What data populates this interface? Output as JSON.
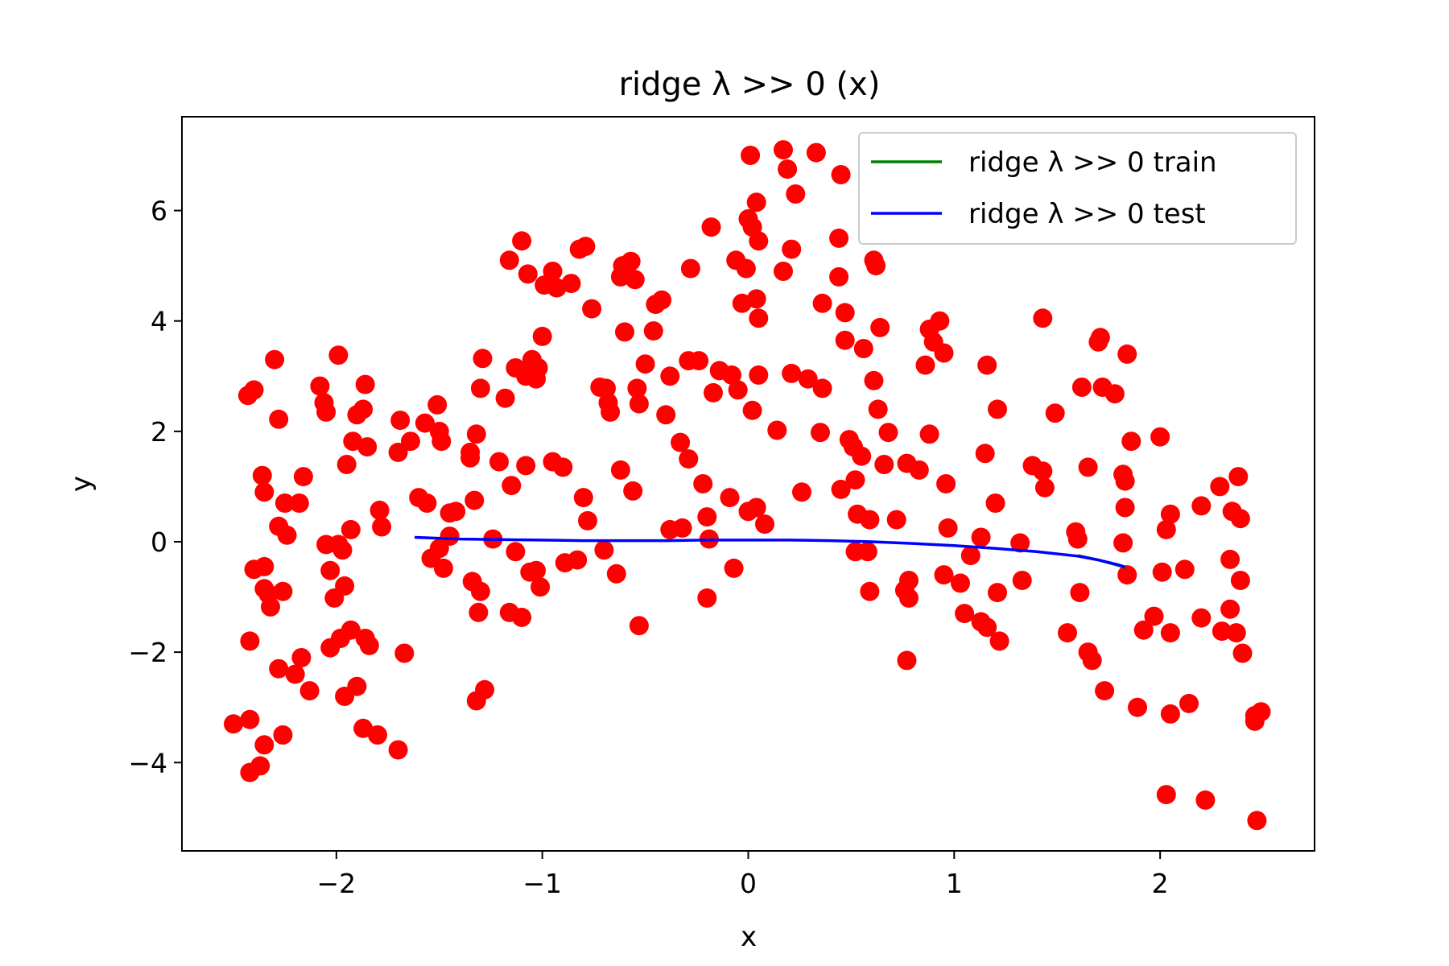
{
  "chart_data": {
    "type": "scatter",
    "title": "ridge λ >> 0  (x)",
    "xlabel": "x",
    "ylabel": "y",
    "xlim": [
      -2.75,
      2.75
    ],
    "ylim": [
      -5.6,
      7.7
    ],
    "x_ticks": [
      -2,
      -1,
      0,
      1,
      2
    ],
    "x_tick_labels": [
      "−2",
      "−1",
      "0",
      "1",
      "2"
    ],
    "y_ticks": [
      -4,
      -2,
      0,
      2,
      4,
      6
    ],
    "y_tick_labels": [
      "−4",
      "−2",
      "0",
      "2",
      "4",
      "6"
    ],
    "grid": false,
    "legend_position": "top-right",
    "colors": {
      "points": "#ff0000",
      "train": "#008000",
      "test": "#0000ff"
    },
    "series": [
      {
        "name": "ridge λ >> 0  train",
        "kind": "line",
        "color": "#008000",
        "x": [
          1.6,
          1.7,
          1.8,
          1.83
        ],
        "y": [
          -0.25,
          -0.33,
          -0.43,
          -0.47
        ]
      },
      {
        "name": "ridge λ >> 0  test",
        "kind": "line",
        "color": "#0000ff",
        "x": [
          -1.62,
          -1.4,
          -1.2,
          -1.0,
          -0.8,
          -0.6,
          -0.4,
          -0.2,
          0.0,
          0.2,
          0.4,
          0.6,
          0.8,
          1.0,
          1.2,
          1.4,
          1.6,
          1.7,
          1.8,
          1.83
        ],
        "y": [
          0.08,
          0.05,
          0.04,
          0.03,
          0.02,
          0.02,
          0.02,
          0.03,
          0.03,
          0.03,
          0.02,
          0.0,
          -0.03,
          -0.07,
          -0.12,
          -0.18,
          -0.26,
          -0.33,
          -0.42,
          -0.46
        ]
      },
      {
        "kind": "scatter",
        "color": "#ff0000",
        "points": [
          [
            -2.43,
            2.65
          ],
          [
            -2.4,
            2.75
          ],
          [
            -2.3,
            3.3
          ],
          [
            -2.28,
            2.22
          ],
          [
            -2.36,
            1.2
          ],
          [
            -2.35,
            0.9
          ],
          [
            -2.25,
            0.7
          ],
          [
            -2.18,
            0.7
          ],
          [
            -2.16,
            1.18
          ],
          [
            -2.28,
            0.28
          ],
          [
            -2.24,
            0.12
          ],
          [
            -2.4,
            -0.5
          ],
          [
            -2.35,
            -0.45
          ],
          [
            -2.35,
            -0.85
          ],
          [
            -2.33,
            -0.95
          ],
          [
            -2.32,
            -1.18
          ],
          [
            -2.26,
            -0.9
          ],
          [
            -2.42,
            -1.8
          ],
          [
            -2.28,
            -2.3
          ],
          [
            -2.2,
            -2.4
          ],
          [
            -2.17,
            -2.1
          ],
          [
            -2.13,
            -2.7
          ],
          [
            -2.5,
            -3.3
          ],
          [
            -2.42,
            -3.22
          ],
          [
            -2.35,
            -3.68
          ],
          [
            -2.42,
            -4.18
          ],
          [
            -2.37,
            -4.06
          ],
          [
            -2.26,
            -3.5
          ],
          [
            -2.08,
            2.82
          ],
          [
            -2.06,
            2.52
          ],
          [
            -2.05,
            2.35
          ],
          [
            -1.99,
            3.38
          ],
          [
            -1.95,
            1.4
          ],
          [
            -1.92,
            1.82
          ],
          [
            -1.9,
            2.3
          ],
          [
            -1.87,
            2.4
          ],
          [
            -1.86,
            2.85
          ],
          [
            -1.85,
            1.72
          ],
          [
            -2.05,
            -0.05
          ],
          [
            -2.03,
            -0.52
          ],
          [
            -1.99,
            -0.05
          ],
          [
            -1.97,
            -0.15
          ],
          [
            -1.96,
            -0.8
          ],
          [
            -2.01,
            -1.02
          ],
          [
            -1.93,
            0.22
          ],
          [
            -2.03,
            -1.92
          ],
          [
            -1.98,
            -1.75
          ],
          [
            -1.93,
            -1.6
          ],
          [
            -1.86,
            -1.75
          ],
          [
            -1.84,
            -1.88
          ],
          [
            -1.96,
            -2.8
          ],
          [
            -1.9,
            -2.62
          ],
          [
            -1.87,
            -3.38
          ],
          [
            -1.8,
            -3.5
          ],
          [
            -1.7,
            -3.77
          ],
          [
            -1.67,
            -2.02
          ],
          [
            -1.79,
            0.57
          ],
          [
            -1.78,
            0.27
          ],
          [
            -1.69,
            2.2
          ],
          [
            -1.7,
            1.62
          ],
          [
            -1.64,
            1.82
          ],
          [
            -1.6,
            0.8
          ],
          [
            -1.56,
            0.7
          ],
          [
            -1.57,
            2.15
          ],
          [
            -1.51,
            2.48
          ],
          [
            -1.5,
            2.0
          ],
          [
            -1.49,
            1.82
          ],
          [
            -1.54,
            -0.3
          ],
          [
            -1.5,
            -0.12
          ],
          [
            -1.48,
            -0.48
          ],
          [
            -1.45,
            0.52
          ],
          [
            -1.42,
            0.55
          ],
          [
            -1.45,
            0.1
          ],
          [
            -1.35,
            1.62
          ],
          [
            -1.35,
            1.52
          ],
          [
            -1.32,
            1.95
          ],
          [
            -1.3,
            2.78
          ],
          [
            -1.29,
            3.32
          ],
          [
            -1.33,
            0.75
          ],
          [
            -1.34,
            -0.72
          ],
          [
            -1.3,
            -0.9
          ],
          [
            -1.31,
            -1.28
          ],
          [
            -1.32,
            -2.88
          ],
          [
            -1.28,
            -2.68
          ],
          [
            -1.24,
            0.05
          ],
          [
            -1.21,
            1.45
          ],
          [
            -1.18,
            2.6
          ],
          [
            -1.15,
            1.02
          ],
          [
            -1.16,
            5.1
          ],
          [
            -1.1,
            5.45
          ],
          [
            -1.07,
            4.85
          ],
          [
            -1.13,
            3.15
          ],
          [
            -1.08,
            3.0
          ],
          [
            -1.05,
            3.3
          ],
          [
            -1.03,
            2.95
          ],
          [
            -1.02,
            3.15
          ],
          [
            -1.08,
            1.38
          ],
          [
            -1.13,
            -0.18
          ],
          [
            -1.16,
            -1.28
          ],
          [
            -1.1,
            -1.37
          ],
          [
            -1.06,
            -0.55
          ],
          [
            -1.03,
            -0.52
          ],
          [
            -1.01,
            -0.82
          ],
          [
            -1.0,
            3.72
          ],
          [
            -0.99,
            4.65
          ],
          [
            -0.95,
            4.9
          ],
          [
            -0.93,
            4.6
          ],
          [
            -0.86,
            4.68
          ],
          [
            -0.95,
            1.45
          ],
          [
            -0.9,
            1.35
          ],
          [
            -0.89,
            -0.38
          ],
          [
            -0.83,
            -0.33
          ],
          [
            -0.8,
            0.8
          ],
          [
            -0.78,
            0.38
          ],
          [
            -0.82,
            5.3
          ],
          [
            -0.79,
            5.35
          ],
          [
            -0.76,
            4.22
          ],
          [
            -0.72,
            2.8
          ],
          [
            -0.69,
            2.78
          ],
          [
            -0.68,
            2.52
          ],
          [
            -0.67,
            2.35
          ],
          [
            -0.7,
            -0.15
          ],
          [
            -0.64,
            -0.58
          ],
          [
            -0.61,
            5.0
          ],
          [
            -0.57,
            5.08
          ],
          [
            -0.62,
            4.8
          ],
          [
            -0.55,
            4.75
          ],
          [
            -0.6,
            3.8
          ],
          [
            -0.54,
            2.78
          ],
          [
            -0.53,
            2.5
          ],
          [
            -0.5,
            3.22
          ],
          [
            -0.62,
            1.3
          ],
          [
            -0.56,
            0.92
          ],
          [
            -0.53,
            -1.52
          ],
          [
            -0.46,
            3.82
          ],
          [
            -0.45,
            4.3
          ],
          [
            -0.42,
            4.38
          ],
          [
            -0.4,
            2.3
          ],
          [
            -0.38,
            3.0
          ],
          [
            -0.38,
            0.22
          ],
          [
            -0.32,
            0.25
          ],
          [
            -0.33,
            1.8
          ],
          [
            -0.29,
            1.5
          ],
          [
            -0.28,
            4.95
          ],
          [
            -0.29,
            3.28
          ],
          [
            -0.24,
            3.28
          ],
          [
            -0.22,
            1.05
          ],
          [
            -0.2,
            0.45
          ],
          [
            -0.19,
            0.05
          ],
          [
            -0.2,
            -1.02
          ],
          [
            -0.18,
            5.7
          ],
          [
            -0.17,
            2.7
          ],
          [
            -0.14,
            3.1
          ],
          [
            -0.08,
            3.02
          ],
          [
            -0.05,
            2.75
          ],
          [
            -0.09,
            0.8
          ],
          [
            -0.07,
            -0.48
          ],
          [
            -0.06,
            5.1
          ],
          [
            -0.03,
            4.32
          ],
          [
            -0.01,
            4.95
          ],
          [
            0.01,
            7.0
          ],
          [
            0.0,
            5.85
          ],
          [
            0.02,
            5.7
          ],
          [
            0.04,
            6.15
          ],
          [
            0.05,
            5.45
          ],
          [
            0.04,
            4.4
          ],
          [
            0.05,
            4.05
          ],
          [
            0.05,
            3.02
          ],
          [
            0.02,
            2.38
          ],
          [
            0.0,
            0.55
          ],
          [
            0.04,
            0.62
          ],
          [
            0.08,
            0.32
          ],
          [
            0.14,
            2.02
          ],
          [
            0.17,
            7.1
          ],
          [
            0.19,
            6.75
          ],
          [
            0.23,
            6.3
          ],
          [
            0.21,
            5.3
          ],
          [
            0.17,
            4.9
          ],
          [
            0.21,
            3.05
          ],
          [
            0.29,
            2.95
          ],
          [
            0.33,
            7.05
          ],
          [
            0.36,
            4.32
          ],
          [
            0.36,
            2.78
          ],
          [
            0.35,
            1.98
          ],
          [
            0.26,
            0.9
          ],
          [
            0.45,
            6.65
          ],
          [
            0.44,
            5.5
          ],
          [
            0.44,
            4.8
          ],
          [
            0.47,
            4.15
          ],
          [
            0.47,
            3.65
          ],
          [
            0.56,
            3.5
          ],
          [
            0.49,
            1.85
          ],
          [
            0.51,
            1.72
          ],
          [
            0.55,
            1.55
          ],
          [
            0.45,
            0.95
          ],
          [
            0.52,
            1.12
          ],
          [
            0.53,
            0.5
          ],
          [
            0.59,
            0.4
          ],
          [
            0.52,
            -0.18
          ],
          [
            0.58,
            -0.18
          ],
          [
            0.59,
            -0.9
          ],
          [
            0.61,
            5.1
          ],
          [
            0.62,
            5.0
          ],
          [
            0.61,
            2.92
          ],
          [
            0.63,
            2.4
          ],
          [
            0.64,
            3.88
          ],
          [
            0.66,
            1.4
          ],
          [
            0.68,
            1.98
          ],
          [
            0.72,
            0.4
          ],
          [
            0.77,
            1.42
          ],
          [
            0.83,
            1.3
          ],
          [
            0.78,
            -0.7
          ],
          [
            0.76,
            -0.88
          ],
          [
            0.78,
            -1.02
          ],
          [
            0.77,
            -2.15
          ],
          [
            0.88,
            3.85
          ],
          [
            0.9,
            3.62
          ],
          [
            0.93,
            4.0
          ],
          [
            0.95,
            3.42
          ],
          [
            0.86,
            3.2
          ],
          [
            0.88,
            1.95
          ],
          [
            0.96,
            1.05
          ],
          [
            0.97,
            0.25
          ],
          [
            0.95,
            -0.6
          ],
          [
            1.03,
            -0.75
          ],
          [
            1.05,
            -1.3
          ],
          [
            1.08,
            -0.25
          ],
          [
            1.13,
            -1.45
          ],
          [
            1.13,
            0.08
          ],
          [
            1.16,
            -1.55
          ],
          [
            1.16,
            3.2
          ],
          [
            1.15,
            1.6
          ],
          [
            1.21,
            2.4
          ],
          [
            1.2,
            0.7
          ],
          [
            1.21,
            -0.92
          ],
          [
            1.22,
            -1.8
          ],
          [
            1.32,
            -0.02
          ],
          [
            1.33,
            -0.7
          ],
          [
            1.38,
            1.38
          ],
          [
            1.43,
            1.28
          ],
          [
            1.44,
            0.98
          ],
          [
            1.43,
            4.05
          ],
          [
            1.49,
            2.33
          ],
          [
            1.55,
            -1.65
          ],
          [
            1.59,
            0.18
          ],
          [
            1.6,
            0.05
          ],
          [
            1.61,
            -0.92
          ],
          [
            1.62,
            2.8
          ],
          [
            1.65,
            1.35
          ],
          [
            1.65,
            -2.0
          ],
          [
            1.67,
            -2.15
          ],
          [
            1.7,
            3.62
          ],
          [
            1.71,
            3.7
          ],
          [
            1.72,
            2.8
          ],
          [
            1.73,
            -2.7
          ],
          [
            1.78,
            2.68
          ],
          [
            1.82,
            1.22
          ],
          [
            1.83,
            1.1
          ],
          [
            1.83,
            0.62
          ],
          [
            1.82,
            -0.02
          ],
          [
            1.84,
            -0.6
          ],
          [
            1.84,
            3.4
          ],
          [
            1.86,
            1.82
          ],
          [
            1.89,
            -3.0
          ],
          [
            1.92,
            -1.6
          ],
          [
            1.97,
            -1.35
          ],
          [
            2.0,
            1.9
          ],
          [
            2.01,
            -0.55
          ],
          [
            2.03,
            0.22
          ],
          [
            2.05,
            0.5
          ],
          [
            2.05,
            -1.65
          ],
          [
            2.05,
            -3.12
          ],
          [
            2.12,
            -0.5
          ],
          [
            2.14,
            -2.93
          ],
          [
            2.2,
            0.65
          ],
          [
            2.2,
            -1.38
          ],
          [
            2.22,
            -4.68
          ],
          [
            2.03,
            -4.58
          ],
          [
            2.29,
            1.0
          ],
          [
            2.3,
            -1.62
          ],
          [
            2.34,
            -0.32
          ],
          [
            2.34,
            -1.22
          ],
          [
            2.35,
            0.55
          ],
          [
            2.37,
            -1.65
          ],
          [
            2.38,
            1.18
          ],
          [
            2.39,
            0.42
          ],
          [
            2.39,
            -0.7
          ],
          [
            2.4,
            -2.02
          ],
          [
            2.46,
            -3.15
          ],
          [
            2.46,
            -3.25
          ],
          [
            2.49,
            -3.08
          ],
          [
            2.47,
            -5.05
          ]
        ]
      }
    ]
  }
}
